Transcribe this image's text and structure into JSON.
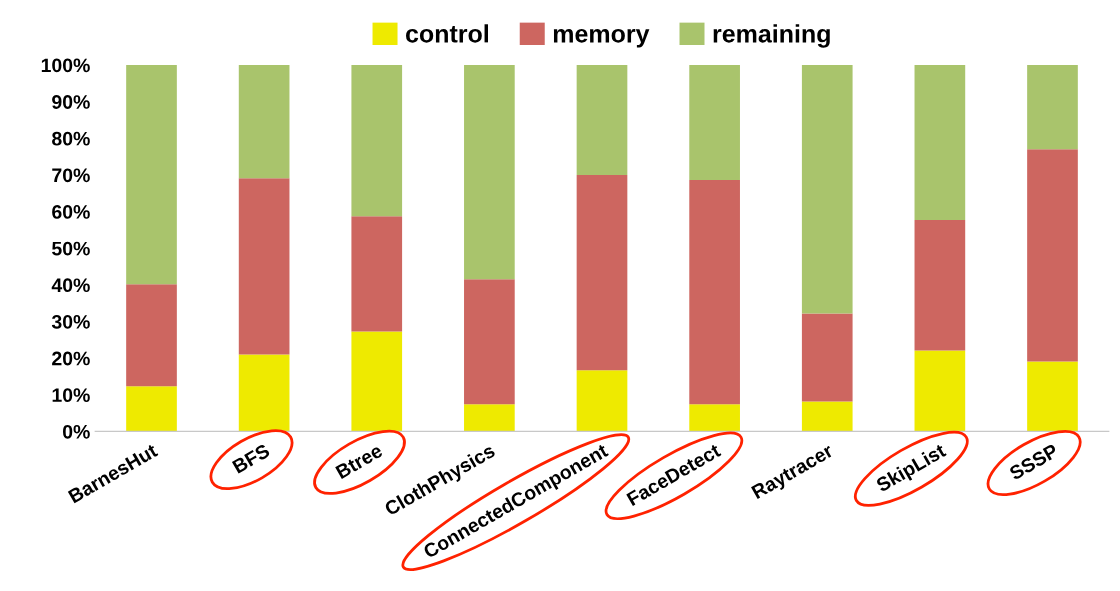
{
  "chart_data": {
    "type": "bar",
    "stacked": true,
    "legend": "top",
    "grid": false,
    "categories": [
      "BarnesHut",
      "BFS",
      "Btree",
      "ClothPhysics",
      "ConnectedComponent",
      "FaceDetect",
      "Raytracer",
      "SkipList",
      "SSSP"
    ],
    "series": [
      {
        "name": "control",
        "color": "#eeea00",
        "values": [
          12.3,
          21,
          27.3,
          7.4,
          16.7,
          7.4,
          8.2,
          22.1,
          19.1
        ]
      },
      {
        "name": "memory",
        "color": "#cd6660",
        "values": [
          27.9,
          48.1,
          31.4,
          34.1,
          53.3,
          61.2,
          24,
          35.6,
          57.9
        ]
      },
      {
        "name": "remaining",
        "color": "#a9c46c",
        "values": [
          59.8,
          30.9,
          41.3,
          58.5,
          30,
          31.4,
          67.8,
          42.3,
          23
        ]
      }
    ],
    "ylim": [
      0,
      100
    ],
    "yticks": [
      {
        "value": 0,
        "label": "0%"
      },
      {
        "value": 10,
        "label": "10%"
      },
      {
        "value": 20,
        "label": "20%"
      },
      {
        "value": 30,
        "label": "30%"
      },
      {
        "value": 40,
        "label": "40%"
      },
      {
        "value": 50,
        "label": "50%"
      },
      {
        "value": 60,
        "label": "60%"
      },
      {
        "value": 70,
        "label": "70%"
      },
      {
        "value": 80,
        "label": "80%"
      },
      {
        "value": 90,
        "label": "90%"
      },
      {
        "value": 100,
        "label": "100%"
      }
    ]
  }
}
